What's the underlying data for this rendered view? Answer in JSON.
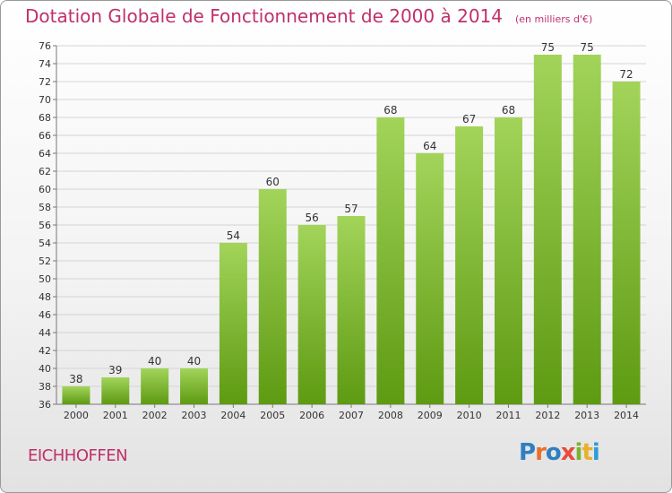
{
  "header": {
    "title": "Dotation Globale de Fonctionnement de 2000 à 2014",
    "unit": "(en milliers d'€)"
  },
  "footer": {
    "commune": "EICHHOFFEN",
    "logo": "Proxiti"
  },
  "colors": {
    "accent": "#c0306a",
    "bar_light": "#a2d45a",
    "bar_dark": "#5e9a12"
  },
  "chart_data": {
    "type": "bar",
    "title": "Dotation Globale de Fonctionnement de 2000 à 2014",
    "subtitle": "(en milliers d'€)",
    "categories": [
      "2000",
      "2001",
      "2002",
      "2003",
      "2004",
      "2005",
      "2006",
      "2007",
      "2008",
      "2009",
      "2010",
      "2011",
      "2012",
      "2013",
      "2014"
    ],
    "values": [
      38,
      39,
      40,
      40,
      54,
      60,
      56,
      57,
      68,
      64,
      67,
      68,
      75,
      75,
      72
    ],
    "ylim": [
      36,
      76
    ],
    "yticks": [
      36,
      38,
      40,
      42,
      44,
      46,
      48,
      50,
      52,
      54,
      56,
      58,
      60,
      62,
      64,
      66,
      68,
      70,
      72,
      74,
      76
    ],
    "grid": true,
    "data_labels": true
  }
}
